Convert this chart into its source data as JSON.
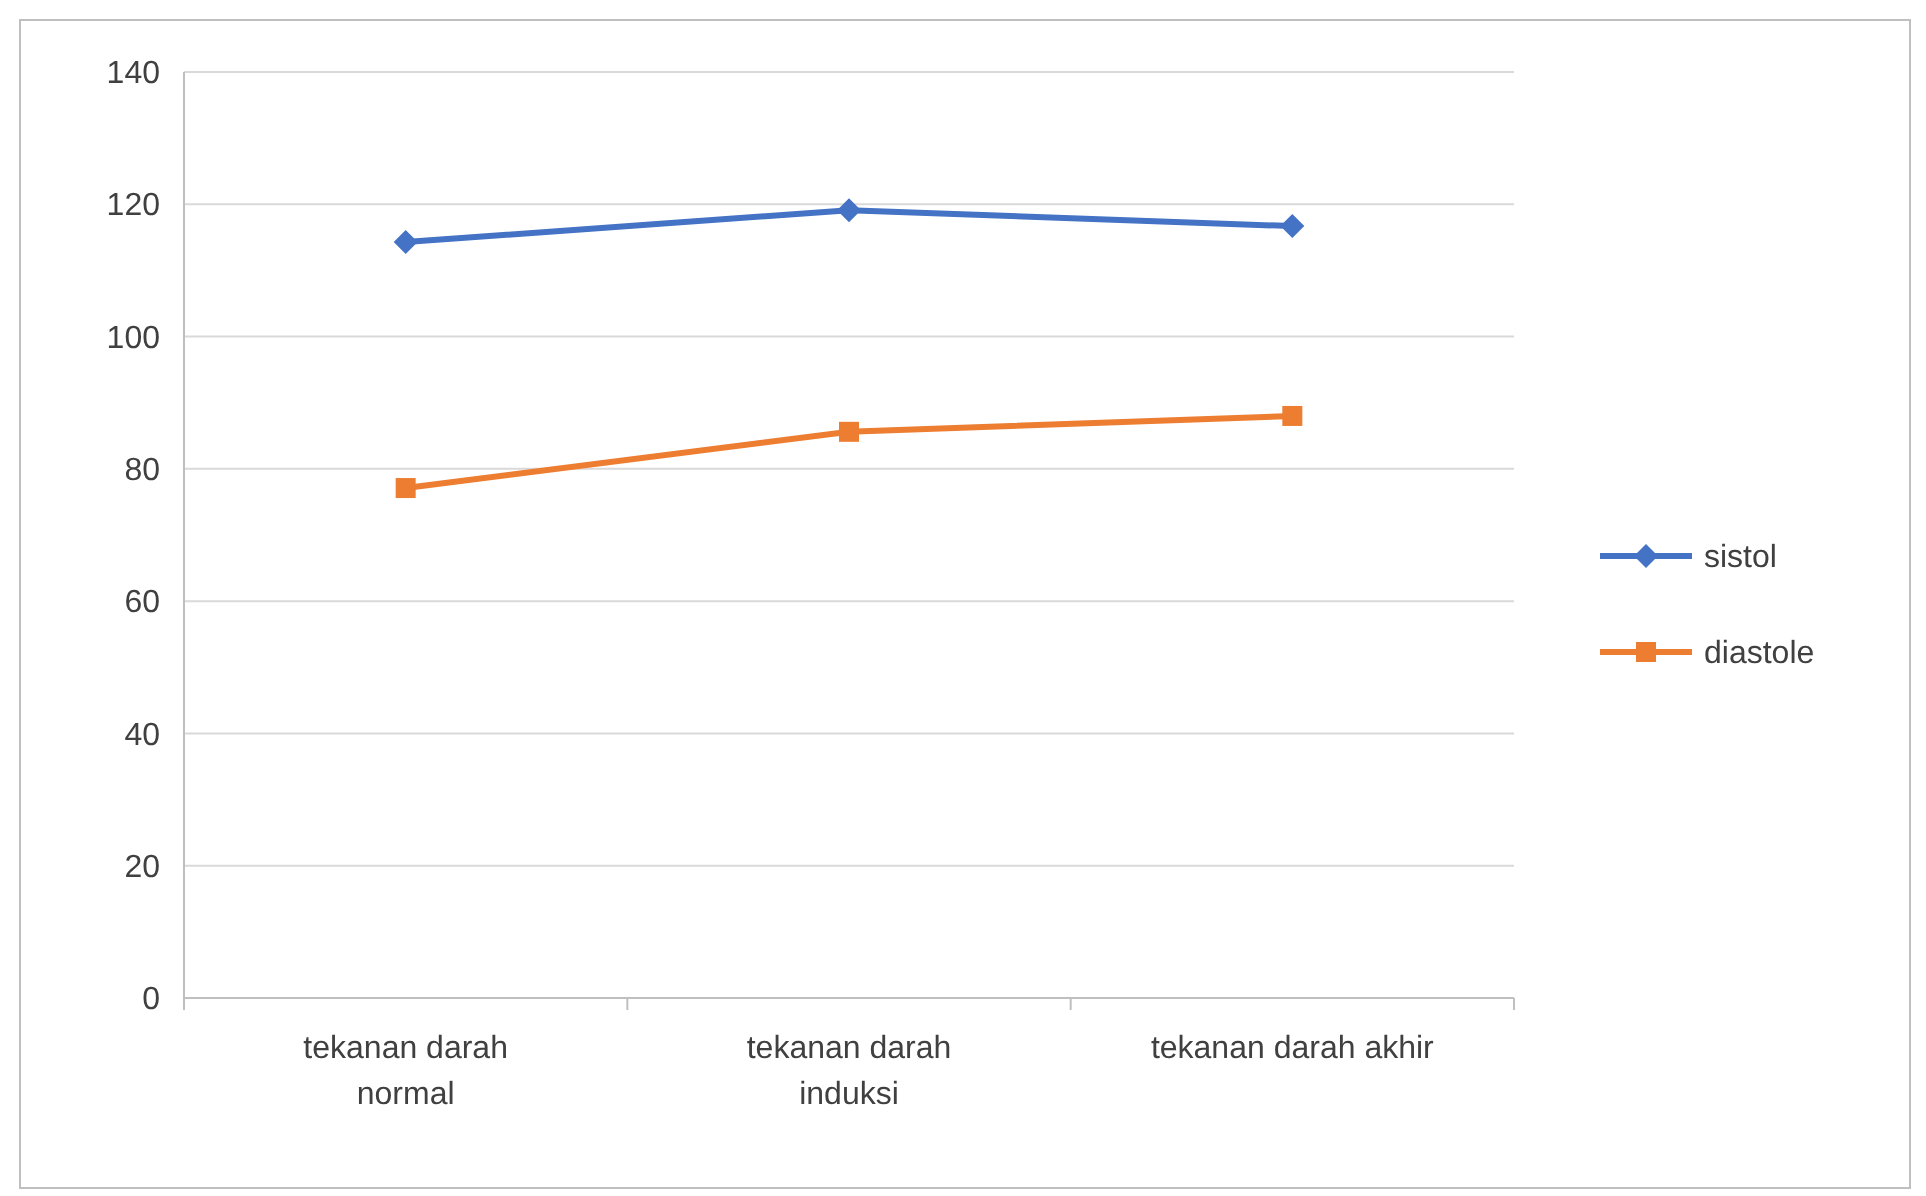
{
  "chart_data": {
    "type": "line",
    "categories": [
      "tekanan darah normal",
      "tekanan darah induksi",
      "tekanan darah akhir"
    ],
    "series": [
      {
        "name": "sistol",
        "color": "#4472c4",
        "marker": "diamond",
        "values": [
          114.3,
          119.1,
          116.7
        ]
      },
      {
        "name": "diastole",
        "color": "#ed7d31",
        "marker": "square",
        "values": [
          77.1,
          85.6,
          88.0
        ]
      }
    ],
    "ylim": [
      0,
      140
    ],
    "yticks": [
      0,
      20,
      40,
      60,
      80,
      100,
      120,
      140
    ],
    "grid": "y",
    "legend": "right",
    "line_style": "solid"
  }
}
